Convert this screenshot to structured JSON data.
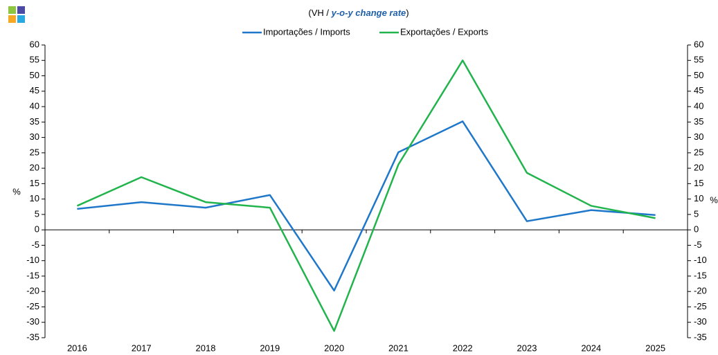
{
  "chart_data": {
    "type": "line",
    "title": {
      "prefix": "(VH /",
      "emphasis": "y-o-y change rate",
      "suffix": ")"
    },
    "ylabel": "%",
    "y2label": "%",
    "categories": [
      "2016",
      "2017",
      "2018",
      "2019",
      "2020",
      "2021",
      "2022",
      "2023",
      "2024",
      "2025"
    ],
    "series": [
      {
        "name": "Importações / Imports",
        "color": "#1f77c9",
        "values": [
          6.8,
          9.0,
          7.2,
          11.3,
          -19.7,
          25.2,
          35.2,
          2.8,
          6.4,
          4.8
        ]
      },
      {
        "name": "Exportações / Exports",
        "color": "#22b44c",
        "values": [
          7.8,
          17.1,
          9.0,
          7.2,
          -32.8,
          21.2,
          55.0,
          18.5,
          7.8,
          3.8
        ]
      }
    ],
    "ylim": [
      -35,
      60
    ],
    "yticks": [
      -35,
      -30,
      -25,
      -20,
      -15,
      -10,
      -5,
      0,
      5,
      10,
      15,
      20,
      25,
      30,
      35,
      40,
      45,
      50,
      55,
      60
    ],
    "y2lim": [
      -35,
      60
    ],
    "y2ticks": [
      -35,
      -30,
      -25,
      -20,
      -15,
      -10,
      -5,
      0,
      5,
      10,
      15,
      20,
      25,
      30,
      35,
      40,
      45,
      50,
      55,
      60
    ],
    "legend": "top",
    "grid": false
  }
}
